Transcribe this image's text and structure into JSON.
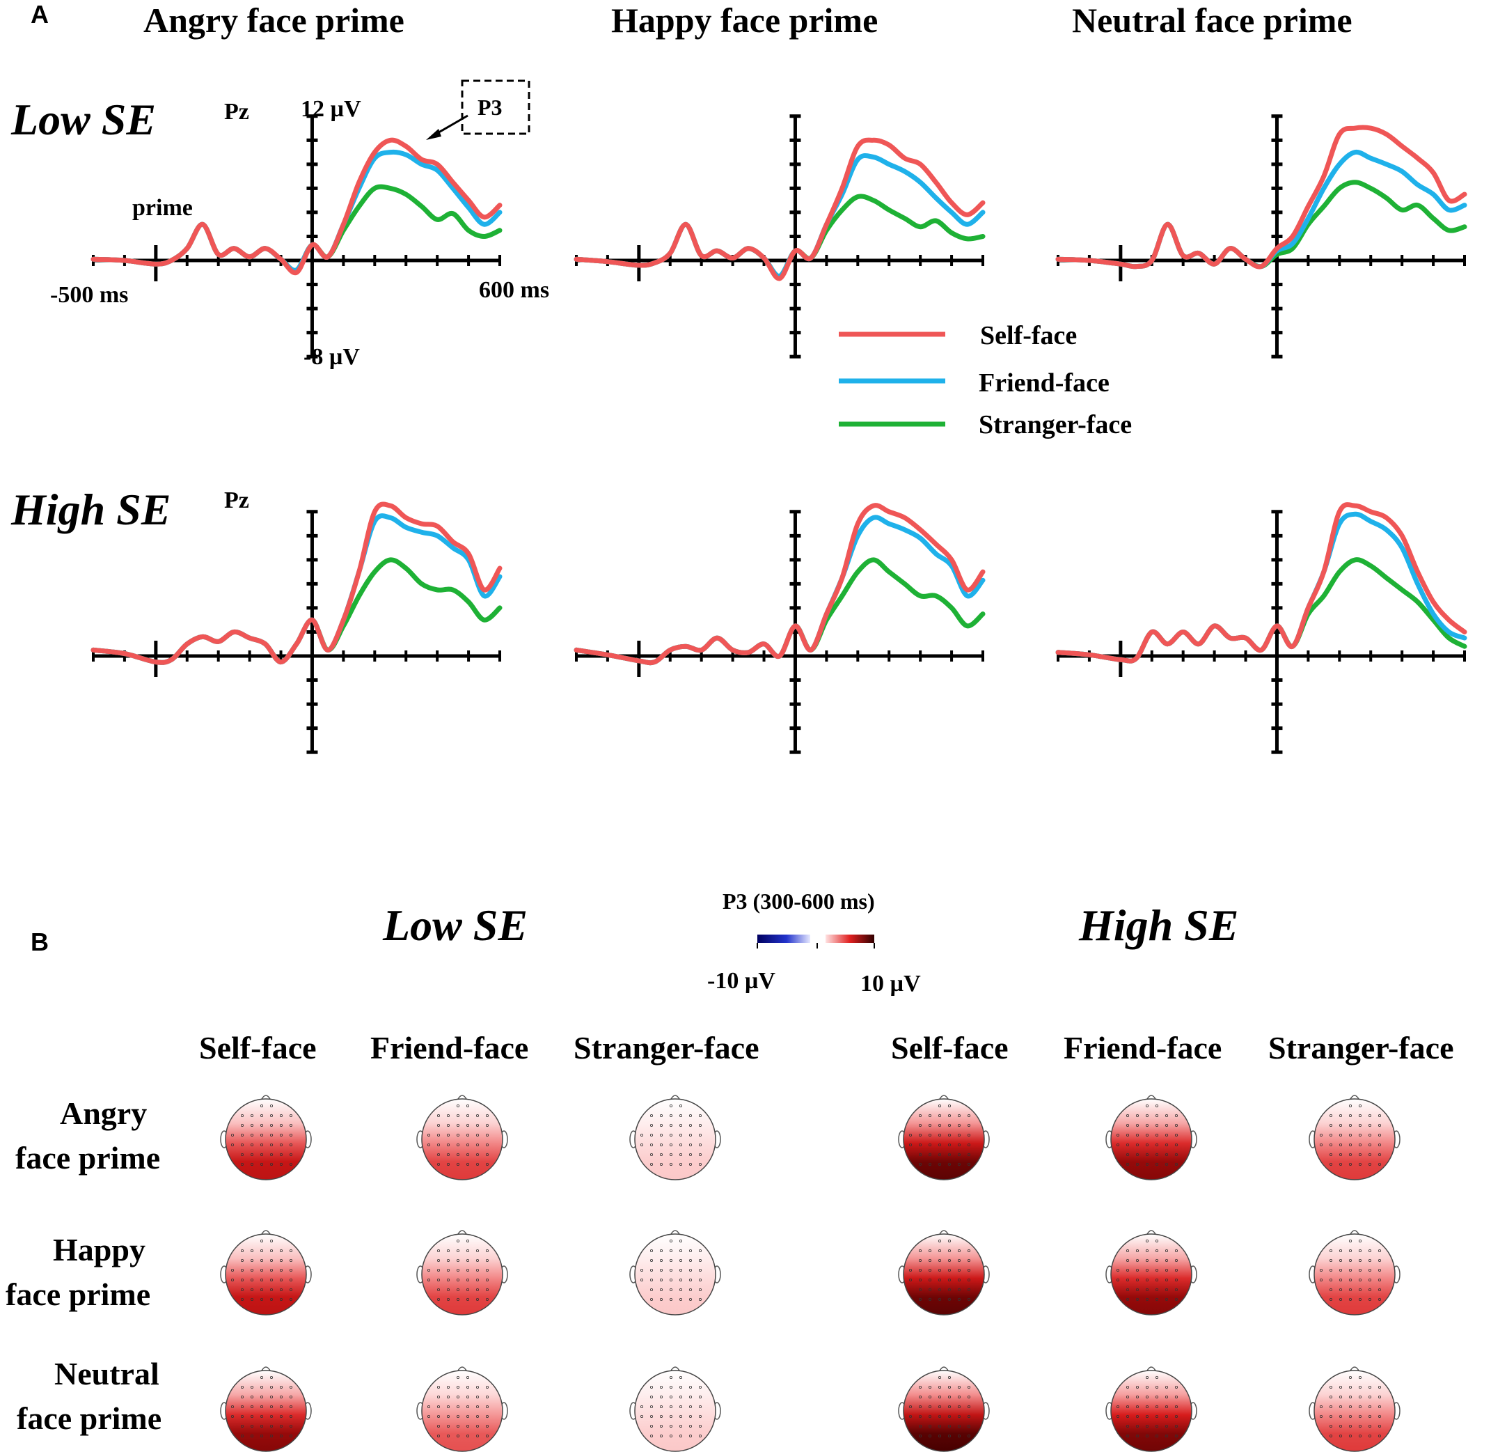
{
  "panel_labels": {
    "a": "A",
    "b": "B"
  },
  "erp": {
    "column_titles": [
      "Angry face prime",
      "Happy face prime",
      "Neutral face prime"
    ],
    "row_labels": [
      "Low SE",
      "High SE"
    ],
    "channel": "Pz",
    "y_top_label": "12 µV",
    "y_bottom_label": "-8 µV",
    "x_left_label": "-500 ms",
    "x_right_label": "600 ms",
    "prime_label": "prime",
    "component_label": "P3",
    "legend": [
      {
        "name": "Self-face",
        "color": "#ef5656"
      },
      {
        "name": "Friend-face",
        "color": "#1fb1ea"
      },
      {
        "name": "Stranger-face",
        "color": "#1eb135"
      }
    ]
  },
  "chart_data": {
    "type": "line",
    "x_unit": "ms",
    "y_unit": "µV",
    "xlim": [
      -700,
      600
    ],
    "ylim": [
      -8,
      12
    ],
    "y_top_label": "12 µV",
    "y_bottom_label": "-8 µV",
    "x_left_label": "-500 ms",
    "x_right_label": "600 ms",
    "x": [
      -700,
      -600,
      -500,
      -450,
      -400,
      -350,
      -300,
      -250,
      -200,
      -150,
      -100,
      -50,
      0,
      50,
      100,
      150,
      200,
      250,
      300,
      350,
      400,
      450,
      500,
      550,
      600
    ],
    "panels": [
      {
        "row": "Low SE",
        "column": "Angry face prime",
        "series": [
          {
            "name": "Self-face",
            "values": [
              0.1,
              0.0,
              -0.3,
              0.0,
              1.0,
              3.0,
              0.5,
              1.0,
              0.3,
              1.0,
              0.1,
              -1.0,
              1.3,
              0.3,
              3.0,
              6.5,
              9.0,
              10.0,
              9.5,
              8.4,
              8.0,
              6.5,
              5.0,
              3.6,
              4.6
            ]
          },
          {
            "name": "Friend-face",
            "values": [
              0.1,
              0.0,
              -0.3,
              0.0,
              1.0,
              3.0,
              0.5,
              1.0,
              0.3,
              1.0,
              0.1,
              -0.8,
              1.3,
              0.3,
              3.0,
              6.0,
              8.5,
              9.0,
              8.8,
              8.0,
              7.5,
              6.0,
              4.4,
              3.0,
              4.0
            ]
          },
          {
            "name": "Stranger-face",
            "values": [
              0.1,
              0.0,
              -0.3,
              0.0,
              1.0,
              3.0,
              0.5,
              1.0,
              0.3,
              1.0,
              0.1,
              -0.8,
              1.3,
              0.3,
              2.5,
              4.5,
              6.0,
              6.0,
              5.5,
              4.5,
              3.4,
              3.9,
              2.5,
              2.0,
              2.5
            ]
          }
        ]
      },
      {
        "row": "Low SE",
        "column": "Happy face prime",
        "series": [
          {
            "name": "Self-face",
            "values": [
              0.1,
              -0.1,
              -0.4,
              -0.2,
              0.6,
              3.0,
              0.4,
              0.8,
              0.2,
              1.0,
              0.2,
              -1.5,
              0.8,
              0.2,
              3.0,
              6.0,
              9.5,
              10.0,
              9.6,
              8.5,
              8.0,
              6.5,
              4.8,
              3.8,
              4.8
            ]
          },
          {
            "name": "Friend-face",
            "values": [
              0.1,
              -0.1,
              -0.4,
              -0.2,
              0.6,
              3.0,
              0.4,
              0.8,
              0.2,
              1.0,
              0.2,
              -1.3,
              0.8,
              0.2,
              3.0,
              5.5,
              8.4,
              8.6,
              8.0,
              7.4,
              6.5,
              5.2,
              4.0,
              3.0,
              4.0
            ]
          },
          {
            "name": "Stranger-face",
            "values": [
              0.1,
              -0.1,
              -0.4,
              -0.2,
              0.6,
              3.0,
              0.4,
              0.8,
              0.2,
              1.0,
              0.2,
              -1.3,
              0.8,
              0.2,
              2.5,
              4.2,
              5.3,
              5.0,
              4.2,
              3.5,
              2.8,
              3.3,
              2.3,
              1.8,
              2.0
            ]
          }
        ]
      },
      {
        "row": "Low SE",
        "column": "Neutral face prime",
        "series": [
          {
            "name": "Self-face",
            "values": [
              0.1,
              0.0,
              -0.3,
              -0.5,
              0.0,
              3.0,
              0.4,
              0.6,
              -0.3,
              1.0,
              0.1,
              -0.5,
              1.0,
              2.0,
              4.5,
              7.0,
              10.5,
              11.0,
              11.0,
              10.5,
              9.5,
              8.5,
              7.3,
              5.0,
              5.5
            ]
          },
          {
            "name": "Friend-face",
            "values": [
              0.1,
              0.0,
              -0.3,
              -0.5,
              0.0,
              3.0,
              0.4,
              0.6,
              -0.3,
              1.0,
              0.1,
              -0.5,
              0.8,
              1.4,
              3.5,
              6.0,
              8.0,
              9.0,
              8.5,
              8.0,
              7.4,
              6.3,
              5.5,
              4.2,
              4.6
            ]
          },
          {
            "name": "Stranger-face",
            "values": [
              0.1,
              0.0,
              -0.3,
              -0.5,
              0.0,
              3.0,
              0.4,
              0.6,
              -0.3,
              1.0,
              0.1,
              -0.5,
              0.5,
              1.0,
              3.0,
              4.5,
              6.0,
              6.5,
              6.0,
              5.2,
              4.2,
              4.6,
              3.5,
              2.5,
              2.8
            ]
          }
        ]
      },
      {
        "row": "High SE",
        "column": "Angry face prime",
        "series": [
          {
            "name": "Self-face",
            "values": [
              0.5,
              0.2,
              -0.5,
              -0.3,
              1.0,
              1.6,
              1.2,
              2.0,
              1.5,
              1.0,
              -0.5,
              1.0,
              3.0,
              0.5,
              3.0,
              7.0,
              12.0,
              12.5,
              11.5,
              11.0,
              10.8,
              9.5,
              8.5,
              5.5,
              7.3
            ]
          },
          {
            "name": "Friend-face",
            "values": [
              0.5,
              0.2,
              -0.5,
              -0.3,
              1.0,
              1.6,
              1.2,
              2.0,
              1.5,
              1.0,
              -0.5,
              1.0,
              3.0,
              0.5,
              3.0,
              7.0,
              11.2,
              11.5,
              10.7,
              10.3,
              10.0,
              9.0,
              8.0,
              5.0,
              6.6
            ]
          },
          {
            "name": "Stranger-face",
            "values": [
              0.5,
              0.2,
              -0.5,
              -0.3,
              1.0,
              1.6,
              1.2,
              2.0,
              1.5,
              1.0,
              -0.5,
              1.0,
              3.0,
              0.5,
              2.5,
              5.0,
              7.0,
              8.0,
              7.3,
              6.0,
              5.5,
              5.5,
              4.5,
              3.0,
              4.0
            ]
          }
        ]
      },
      {
        "row": "High SE",
        "column": "Happy face prime",
        "series": [
          {
            "name": "Self-face",
            "values": [
              0.5,
              0.1,
              -0.4,
              -0.5,
              0.5,
              0.8,
              0.5,
              1.5,
              0.5,
              0.3,
              1.0,
              0.0,
              2.5,
              0.5,
              3.5,
              6.5,
              11.0,
              12.5,
              12.0,
              11.5,
              10.5,
              9.3,
              8.0,
              5.5,
              7.0
            ]
          },
          {
            "name": "Friend-face",
            "values": [
              0.5,
              0.1,
              -0.4,
              -0.5,
              0.5,
              0.8,
              0.5,
              1.5,
              0.5,
              0.3,
              1.0,
              0.0,
              2.5,
              0.5,
              3.5,
              6.5,
              10.0,
              11.5,
              11.0,
              10.5,
              9.8,
              8.5,
              7.5,
              5.0,
              6.3
            ]
          },
          {
            "name": "Stranger-face",
            "values": [
              0.5,
              0.1,
              -0.4,
              -0.5,
              0.5,
              0.8,
              0.5,
              1.5,
              0.5,
              0.3,
              1.0,
              0.0,
              2.5,
              0.5,
              3.0,
              5.0,
              7.0,
              8.0,
              7.0,
              6.0,
              5.0,
              5.0,
              4.0,
              2.5,
              3.5
            ]
          }
        ]
      },
      {
        "row": "High SE",
        "column": "Neutral face prime",
        "series": [
          {
            "name": "Self-face",
            "values": [
              0.3,
              0.1,
              -0.3,
              -0.2,
              2.0,
              1.0,
              2.0,
              1.0,
              2.5,
              1.5,
              1.5,
              0.5,
              2.5,
              0.8,
              4.0,
              7.0,
              12.0,
              12.5,
              12.0,
              11.5,
              10.0,
              7.0,
              4.5,
              3.0,
              2.0
            ]
          },
          {
            "name": "Friend-face",
            "values": [
              0.3,
              0.1,
              -0.3,
              -0.2,
              2.0,
              1.0,
              2.0,
              1.0,
              2.5,
              1.5,
              1.5,
              0.5,
              2.5,
              0.8,
              4.0,
              7.0,
              11.0,
              11.8,
              11.2,
              10.5,
              9.0,
              6.0,
              3.5,
              2.0,
              1.5
            ]
          },
          {
            "name": "Stranger-face",
            "values": [
              0.3,
              0.1,
              -0.3,
              -0.2,
              2.0,
              1.0,
              2.0,
              1.0,
              2.5,
              1.5,
              1.5,
              0.5,
              2.5,
              0.8,
              3.5,
              5.0,
              7.0,
              8.0,
              7.5,
              6.5,
              5.5,
              4.5,
              3.0,
              1.5,
              0.8
            ]
          }
        ]
      }
    ]
  },
  "topo": {
    "group_labels": [
      "Low SE",
      "High SE"
    ],
    "scale_title": "P3 (300-600 ms)",
    "scale_min_label": "-10 µV",
    "scale_max_label": "10 µV",
    "conditions": [
      "Self-face",
      "Friend-face",
      "Stranger-face"
    ],
    "prime_rows": [
      {
        "line1": "Angry",
        "line2": "face prime"
      },
      {
        "line1": "Happy",
        "line2": "face prime"
      },
      {
        "line1": "Neutral",
        "line2": "face prime"
      }
    ],
    "intensity": {
      "low": [
        [
          0.65,
          0.5,
          0.2
        ],
        [
          0.65,
          0.5,
          0.2
        ],
        [
          0.8,
          0.45,
          0.2
        ]
      ],
      "high": [
        [
          0.9,
          0.8,
          0.5
        ],
        [
          0.9,
          0.8,
          0.5
        ],
        [
          0.95,
          0.85,
          0.5
        ]
      ]
    }
  }
}
